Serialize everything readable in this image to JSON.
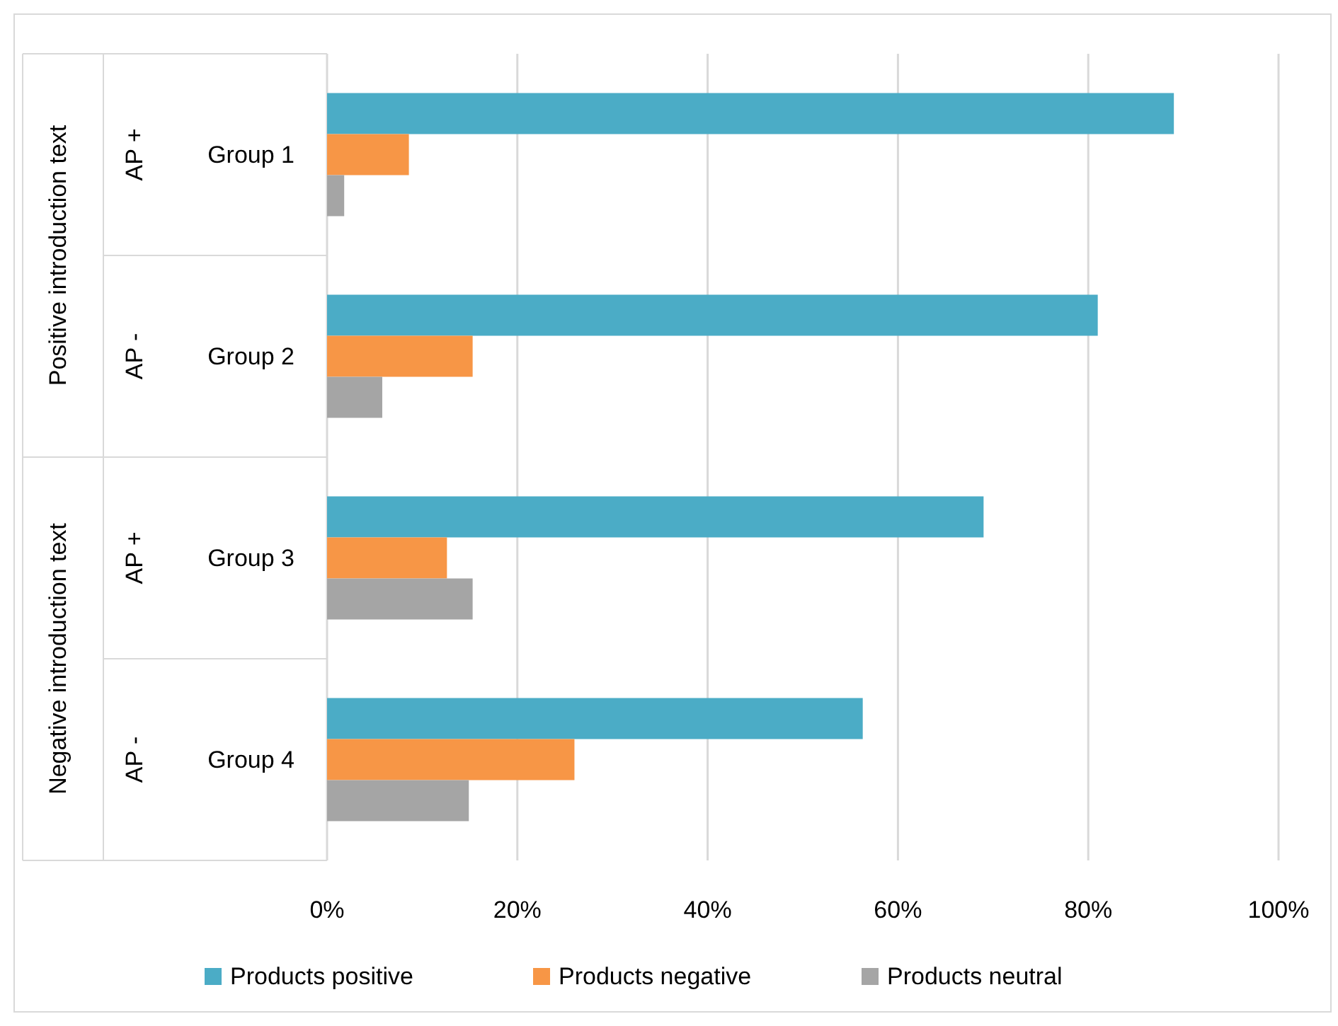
{
  "chart_data": {
    "type": "bar",
    "orientation": "horizontal",
    "categories": [
      "Group 1",
      "Group 2",
      "Group 3",
      "Group 4"
    ],
    "series": [
      {
        "name": "Products positive",
        "color": "#4bacc6",
        "values": [
          89,
          81,
          69,
          56.3
        ]
      },
      {
        "name": "Products negative",
        "color": "#f79646",
        "values": [
          8.6,
          15.3,
          12.6,
          26
        ]
      },
      {
        "name": "Products neutral",
        "color": "#a5a5a5",
        "values": [
          1.8,
          5.8,
          15.3,
          14.9
        ]
      }
    ],
    "xlim": [
      0,
      100
    ],
    "xticks": [
      {
        "value": 0,
        "label": "0%"
      },
      {
        "value": 20,
        "label": "20%"
      },
      {
        "value": 40,
        "label": "40%"
      },
      {
        "value": 60,
        "label": "60%"
      },
      {
        "value": 80,
        "label": "80%"
      },
      {
        "value": 100,
        "label": "100%"
      }
    ],
    "annotations": [
      "AP +",
      "AP -",
      "AP +",
      "AP -",
      "Positive introduction text",
      "Negative introduction text"
    ],
    "grid": "x",
    "legend": "bottom"
  }
}
